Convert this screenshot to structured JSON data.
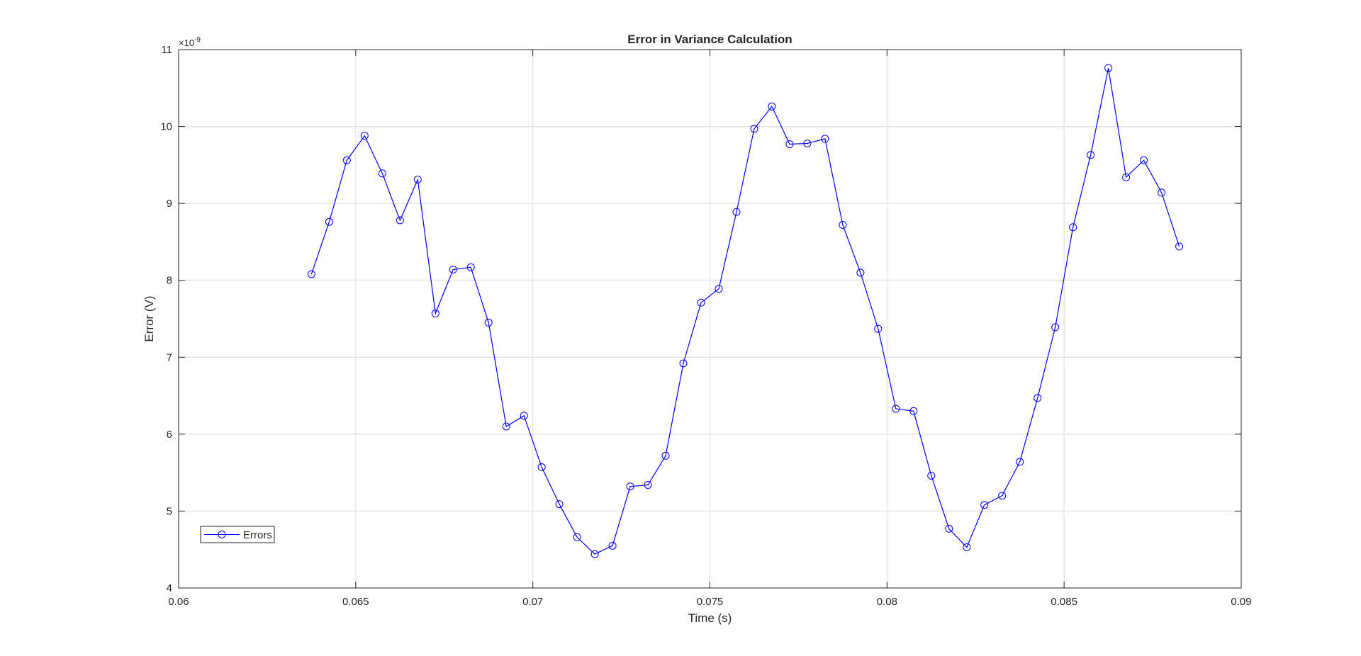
{
  "chart_data": {
    "type": "line",
    "title": "Error in Variance Calculation",
    "xlabel": "Time (s)",
    "ylabel": "Error (V)",
    "y_exponent_base": "×10",
    "y_exponent_power": "-9",
    "xlim": [
      0.06,
      0.09
    ],
    "ylim": [
      4,
      11
    ],
    "x_ticks": [
      0.06,
      0.065,
      0.07,
      0.075,
      0.08,
      0.085,
      0.09
    ],
    "x_tick_labels": [
      "0.06",
      "0.065",
      "0.07",
      "0.075",
      "0.08",
      "0.085",
      "0.09"
    ],
    "y_ticks": [
      4,
      5,
      6,
      7,
      8,
      9,
      10,
      11
    ],
    "y_tick_labels": [
      "4",
      "5",
      "6",
      "7",
      "8",
      "9",
      "10",
      "11"
    ],
    "grid": true,
    "legend_position": "bottom-left",
    "series": [
      {
        "name": "Errors",
        "color": "#0000ff",
        "marker": "circle",
        "x": [
          0.06375,
          0.06425,
          0.06475,
          0.06525,
          0.06575,
          0.06625,
          0.06675,
          0.06725,
          0.06775,
          0.06825,
          0.06875,
          0.06925,
          0.06975,
          0.07025,
          0.07075,
          0.07125,
          0.07175,
          0.07225,
          0.07275,
          0.07325,
          0.07375,
          0.07425,
          0.07475,
          0.07525,
          0.07575,
          0.07625,
          0.07675,
          0.07725,
          0.07775,
          0.07825,
          0.07875,
          0.07925,
          0.07975,
          0.08025,
          0.08075,
          0.08125,
          0.08175,
          0.08225,
          0.08275,
          0.08325,
          0.08375,
          0.08425,
          0.08475,
          0.08525,
          0.08575,
          0.08625,
          0.08675,
          0.08725,
          0.08775,
          0.08825
        ],
        "y": [
          8.08,
          8.76,
          9.56,
          9.88,
          9.39,
          8.78,
          9.31,
          7.57,
          8.14,
          8.17,
          7.45,
          6.1,
          6.24,
          5.57,
          5.09,
          4.66,
          4.44,
          4.55,
          5.32,
          5.34,
          5.72,
          6.92,
          7.71,
          7.89,
          8.89,
          9.97,
          10.26,
          9.77,
          9.78,
          9.84,
          8.72,
          8.1,
          7.37,
          6.33,
          6.3,
          5.46,
          4.77,
          4.53,
          5.08,
          5.2,
          5.64,
          6.47,
          7.39,
          8.69,
          9.63,
          10.76,
          9.34,
          9.56,
          9.14,
          8.44
        ]
      }
    ]
  }
}
